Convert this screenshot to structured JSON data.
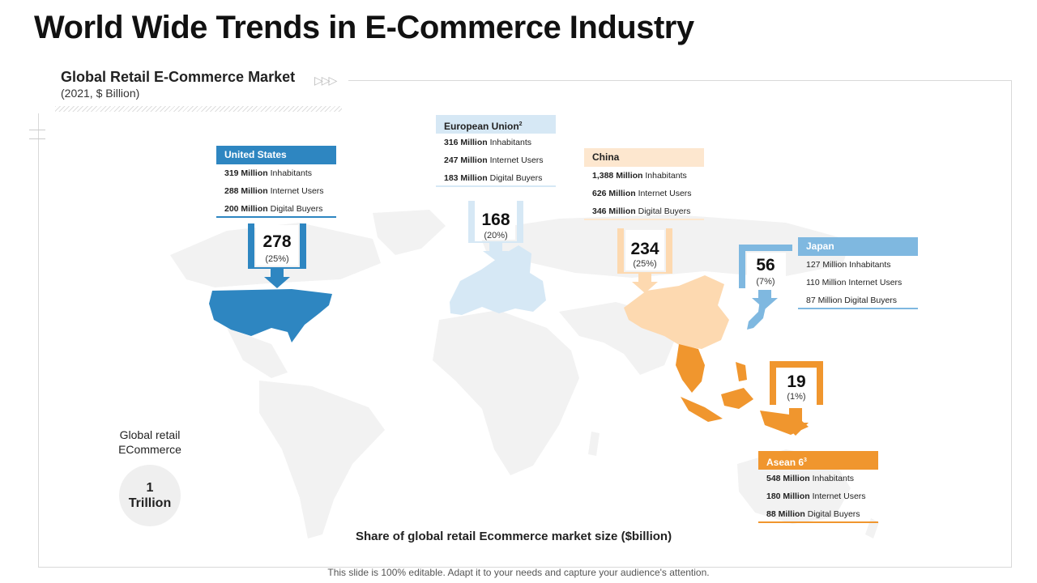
{
  "title": "World Wide Trends in E-Commerce Industry",
  "subtitle": "Global Retail E-Commerce Market",
  "subtitle_note": "(2021, $ Billion)",
  "colors": {
    "us": "#2e86c1",
    "eu": "#d6e8f5",
    "china": "#fdd9b0",
    "japan": "#7fb8e0",
    "asean": "#f0962e",
    "land": "#f2f2f2"
  },
  "regions": {
    "us": {
      "name": "United States",
      "rows": [
        {
          "bold": "319 Million",
          "rest": "Inhabitants"
        },
        {
          "bold": "288 Million",
          "rest": "Internet Users"
        },
        {
          "bold": "200 Million",
          "rest": "Digital Buyers"
        }
      ],
      "value": "278",
      "share": "(25%)"
    },
    "eu": {
      "name": "European Union",
      "sup": "2",
      "rows": [
        {
          "bold": "316 Million",
          "rest": "Inhabitants"
        },
        {
          "bold": "247 Million",
          "rest": "Internet Users"
        },
        {
          "bold": "183 Million",
          "rest": "Digital Buyers"
        }
      ],
      "value": "168",
      "share": "(20%)"
    },
    "china": {
      "name": "China",
      "rows": [
        {
          "bold": "1,388 Million",
          "rest": "Inhabitants"
        },
        {
          "bold": "626 Million",
          "rest": "Internet Users"
        },
        {
          "bold": "346 Million",
          "rest": "Digital Buyers"
        }
      ],
      "value": "234",
      "share": "(25%)"
    },
    "japan": {
      "name": "Japan",
      "rows": [
        {
          "bold": "",
          "rest": "127 Million  Inhabitants"
        },
        {
          "bold": "",
          "rest": "110 Million  Internet Users"
        },
        {
          "bold": "",
          "rest": "87 Million  Digital Buyers"
        }
      ],
      "value": "56",
      "share": "(7%)"
    },
    "asean": {
      "name": "Asean  6",
      "sup": "3",
      "rows": [
        {
          "bold": "548 Million",
          "rest": "Inhabitants"
        },
        {
          "bold": "180 Million",
          "rest": "Internet Users"
        },
        {
          "bold": "88 Million",
          "rest": "Digital Buyers"
        }
      ],
      "value": "19",
      "share": "(1%)"
    }
  },
  "global": {
    "label_line1": "Global retail",
    "label_line2": "ECommerce",
    "value_line1": "1",
    "value_line2": "Trillion"
  },
  "share_caption": "Share of global retail Ecommerce market size ($billion)",
  "footer": "This slide is 100% editable. Adapt it to your needs and capture your audience's attention."
}
